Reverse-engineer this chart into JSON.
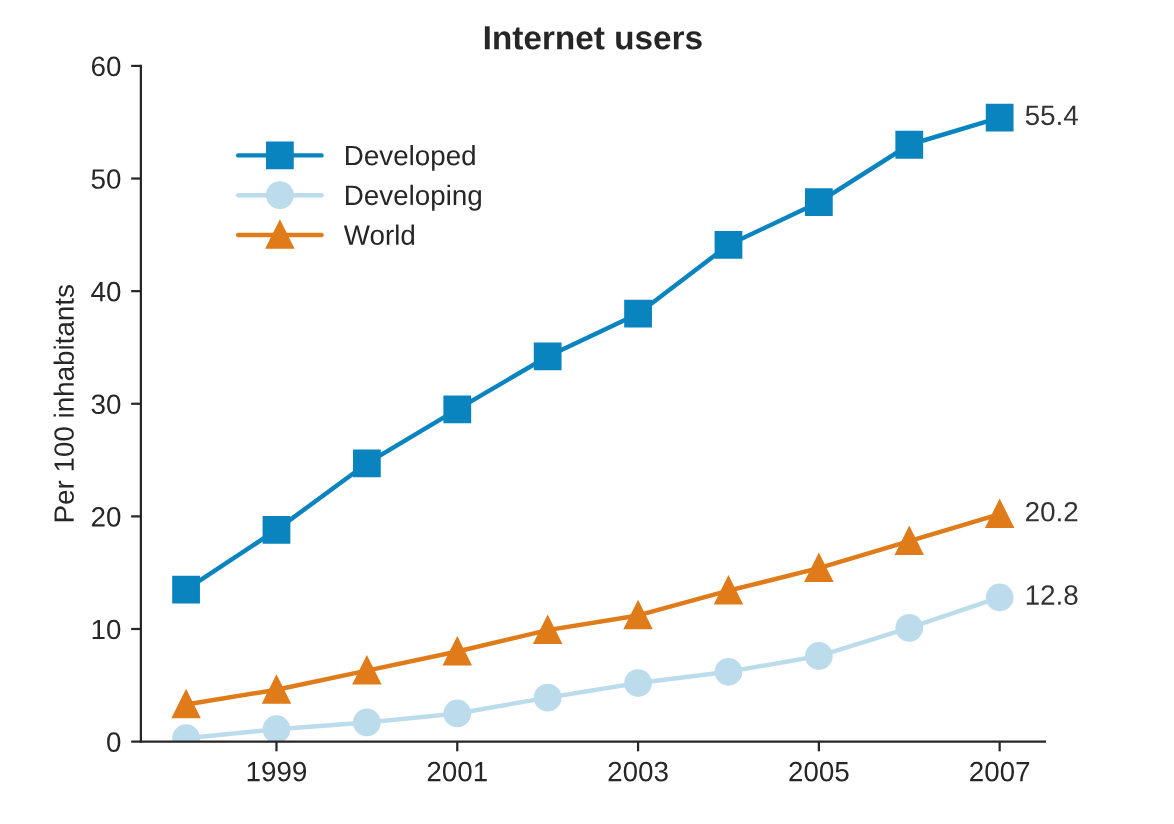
{
  "chart_data": {
    "type": "line",
    "title": "Internet users",
    "ylabel": "Per 100 inhabitants",
    "x": [
      1998,
      1999,
      2000,
      2001,
      2002,
      2003,
      2004,
      2005,
      2006,
      2007
    ],
    "series": [
      {
        "name": "Developed",
        "color": "#0a84bf",
        "marker": "square",
        "values": [
          13.5,
          18.8,
          24.7,
          29.5,
          34.2,
          38.0,
          44.1,
          47.9,
          53.0,
          55.4
        ],
        "value_labels": [
          null,
          null,
          null,
          null,
          null,
          null,
          null,
          null,
          null,
          "55.4"
        ]
      },
      {
        "name": "Developing",
        "color": "#bcdcec",
        "marker": "circle",
        "values": [
          0.3,
          1.1,
          1.7,
          2.5,
          3.9,
          5.2,
          6.2,
          7.6,
          10.1,
          12.8
        ],
        "value_labels": [
          null,
          null,
          null,
          null,
          null,
          null,
          null,
          null,
          null,
          "12.8"
        ]
      },
      {
        "name": "World",
        "color": "#e07b1a",
        "marker": "triangle",
        "values": [
          3.3,
          4.6,
          6.3,
          8.0,
          9.9,
          11.2,
          13.4,
          15.4,
          17.8,
          20.2
        ],
        "value_labels": [
          null,
          null,
          null,
          null,
          null,
          null,
          null,
          null,
          null,
          "20.2"
        ]
      }
    ],
    "xlim": [
      1997.5,
      2007.5
    ],
    "xticks": [
      1999,
      2001,
      2003,
      2005,
      2007
    ],
    "ylim": [
      0,
      60
    ],
    "yticks": [
      0,
      10,
      20,
      30,
      40,
      50,
      60
    ],
    "grid": false,
    "legend": "top left"
  }
}
